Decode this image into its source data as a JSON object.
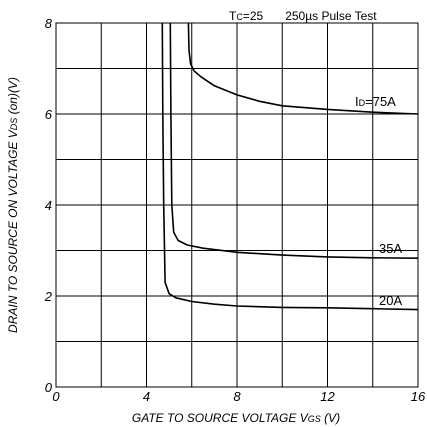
{
  "chart_data": {
    "type": "line",
    "annotation": {
      "t_main": "T",
      "t_sub": "C",
      "t_value": "=25",
      "test": "250µs Pulse Test"
    },
    "xlabel": {
      "main": "GATE TO SOURCE VOLTAGE  V",
      "sub": "GS",
      "unit": " (V)"
    },
    "ylabel": {
      "main": "DRAIN TO SOURCE ON VOLTAGE  V",
      "sub": "DS",
      "unit": " (on)(V)"
    },
    "xlim": [
      0,
      16
    ],
    "ylim": [
      0,
      8
    ],
    "x_ticks": [
      "0",
      "4",
      "8",
      "12",
      "16"
    ],
    "y_ticks": [
      "0",
      "2",
      "4",
      "6",
      "8"
    ],
    "grid": true,
    "series": [
      {
        "name": "ID=75A",
        "label_main": "I",
        "label_sub": "D",
        "label_rest": "=75A",
        "x": [
          5.85,
          5.88,
          5.95,
          6.1,
          6.4,
          7,
          8,
          9,
          10,
          12,
          14,
          16
        ],
        "y": [
          8.0,
          7.4,
          7.1,
          6.95,
          6.82,
          6.62,
          6.42,
          6.28,
          6.18,
          6.1,
          6.04,
          6.0
        ]
      },
      {
        "name": "35A",
        "label_main": "35A",
        "label_sub": "",
        "label_rest": "",
        "x": [
          5.05,
          5.08,
          5.12,
          5.2,
          5.4,
          5.8,
          6.5,
          8,
          10,
          12,
          14,
          16
        ],
        "y": [
          8.0,
          6.0,
          4.0,
          3.4,
          3.22,
          3.12,
          3.05,
          2.96,
          2.9,
          2.86,
          2.84,
          2.83
        ]
      },
      {
        "name": "20A",
        "label_main": "20A",
        "label_sub": "",
        "label_rest": "",
        "x": [
          4.7,
          4.72,
          4.76,
          4.82,
          5.0,
          5.3,
          6,
          7,
          8,
          10,
          12,
          14,
          16
        ],
        "y": [
          8.0,
          6.0,
          4.0,
          2.3,
          2.05,
          1.96,
          1.88,
          1.82,
          1.78,
          1.75,
          1.74,
          1.72,
          1.7
        ]
      }
    ]
  }
}
